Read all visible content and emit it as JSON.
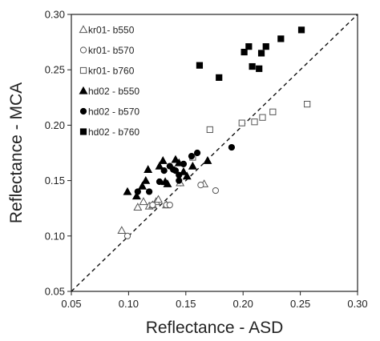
{
  "chart_data": {
    "type": "scatter",
    "xlabel": "Reflectance - ASD",
    "ylabel": "Reflectance - MCA",
    "xlim": [
      0.05,
      0.3
    ],
    "ylim": [
      0.05,
      0.3
    ],
    "xticks": [
      "0.05",
      "0.10",
      "0.15",
      "0.20",
      "0.25",
      "0.30"
    ],
    "yticks": [
      "0.05",
      "0.10",
      "0.15",
      "0.20",
      "0.25",
      "0.30"
    ],
    "grid": false,
    "legend_position": "top-left",
    "reference_line": {
      "style": "dashed",
      "from": [
        0.05,
        0.05
      ],
      "to": [
        0.3,
        0.3
      ]
    },
    "series": [
      {
        "name": "kr01- b550",
        "marker": "triangle-open",
        "points": [
          [
            0.094,
            0.105
          ],
          [
            0.108,
            0.126
          ],
          [
            0.113,
            0.131
          ],
          [
            0.118,
            0.127
          ],
          [
            0.121,
            0.128
          ],
          [
            0.124,
            0.131
          ],
          [
            0.126,
            0.133
          ],
          [
            0.133,
            0.128
          ],
          [
            0.145,
            0.148
          ],
          [
            0.166,
            0.147
          ]
        ]
      },
      {
        "name": "kr01- b570",
        "marker": "circle-open",
        "points": [
          [
            0.099,
            0.1
          ],
          [
            0.121,
            0.128
          ],
          [
            0.133,
            0.128
          ],
          [
            0.136,
            0.128
          ],
          [
            0.163,
            0.146
          ],
          [
            0.176,
            0.141
          ]
        ]
      },
      {
        "name": "kr01- b760",
        "marker": "square-open",
        "points": [
          [
            0.156,
            0.171
          ],
          [
            0.171,
            0.196
          ],
          [
            0.199,
            0.202
          ],
          [
            0.21,
            0.203
          ],
          [
            0.217,
            0.207
          ],
          [
            0.226,
            0.212
          ],
          [
            0.256,
            0.219
          ]
        ]
      },
      {
        "name": "hd02 - b550",
        "marker": "triangle-filled",
        "points": [
          [
            0.099,
            0.14
          ],
          [
            0.107,
            0.136
          ],
          [
            0.112,
            0.145
          ],
          [
            0.115,
            0.15
          ],
          [
            0.117,
            0.16
          ],
          [
            0.127,
            0.163
          ],
          [
            0.13,
            0.168
          ],
          [
            0.132,
            0.149
          ],
          [
            0.134,
            0.147
          ],
          [
            0.141,
            0.169
          ],
          [
            0.144,
            0.166
          ],
          [
            0.148,
            0.158
          ],
          [
            0.151,
            0.154
          ],
          [
            0.156,
            0.163
          ],
          [
            0.169,
            0.168
          ]
        ]
      },
      {
        "name": "hd02 - b570",
        "marker": "circle-filled",
        "points": [
          [
            0.108,
            0.14
          ],
          [
            0.118,
            0.14
          ],
          [
            0.127,
            0.149
          ],
          [
            0.131,
            0.159
          ],
          [
            0.136,
            0.163
          ],
          [
            0.139,
            0.16
          ],
          [
            0.141,
            0.159
          ],
          [
            0.144,
            0.155
          ],
          [
            0.148,
            0.165
          ],
          [
            0.155,
            0.172
          ],
          [
            0.16,
            0.175
          ],
          [
            0.19,
            0.18
          ],
          [
            0.144,
            0.15
          ]
        ]
      },
      {
        "name": "hd02 - b760",
        "marker": "square-filled",
        "points": [
          [
            0.162,
            0.254
          ],
          [
            0.179,
            0.243
          ],
          [
            0.201,
            0.266
          ],
          [
            0.205,
            0.271
          ],
          [
            0.208,
            0.253
          ],
          [
            0.214,
            0.251
          ],
          [
            0.216,
            0.265
          ],
          [
            0.22,
            0.271
          ],
          [
            0.233,
            0.278
          ],
          [
            0.251,
            0.286
          ]
        ]
      }
    ]
  }
}
